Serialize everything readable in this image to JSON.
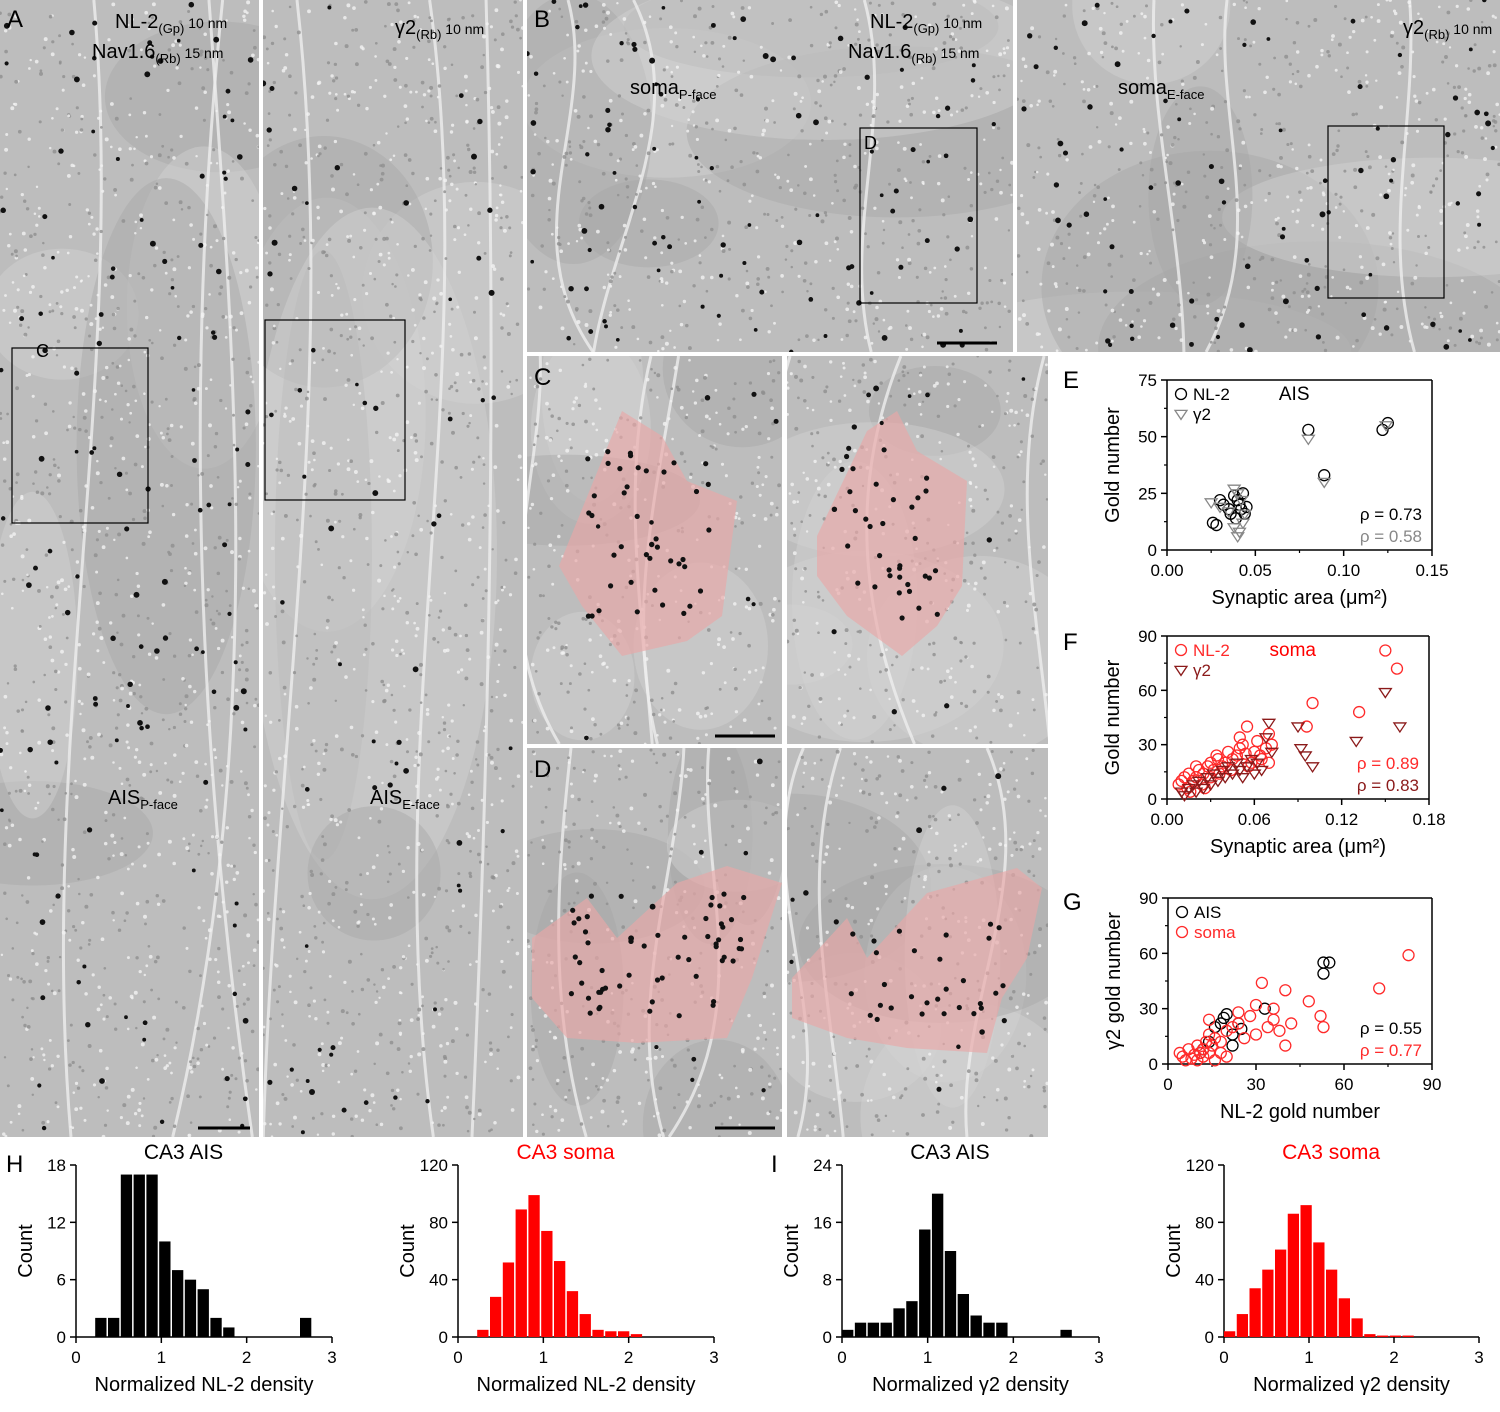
{
  "panels": {
    "A": {
      "letter": "A",
      "left_labels": {
        "l1": "NL-2",
        "l1sub": "(Gp)",
        "l1tail": " 10 nm",
        "l2": "Nav1.6",
        "l2sub": "(Rb)",
        "l2tail": " 15 nm",
        "region": "AIS",
        "face": "P-face",
        "box": "C"
      },
      "right_labels": {
        "l1": "γ2",
        "l1sub": "(Rb)",
        "l1tail": " 10 nm",
        "region": "AIS",
        "face": "E-face"
      }
    },
    "B": {
      "letter": "B",
      "left_labels": {
        "l1": "NL-2",
        "l1sub": "(Gp)",
        "l1tail": " 10 nm",
        "l2": "Nav1.6",
        "l2sub": "(Rb)",
        "l2tail": " 15 nm",
        "region": "soma",
        "face": "P-face",
        "box": "D"
      },
      "right_labels": {
        "l1": "γ2",
        "l1sub": "(Rb)",
        "l1tail": " 10 nm",
        "region": "soma",
        "face": "E-face"
      }
    },
    "C": {
      "letter": "C"
    },
    "D": {
      "letter": "D"
    }
  },
  "chart_data": [
    {
      "panel": "E",
      "type": "scatter",
      "title": "AIS",
      "xlabel": "Synaptic area (μm²)",
      "ylabel": "Gold number",
      "xlim": [
        0,
        0.15
      ],
      "ylim": [
        0,
        75
      ],
      "xticks": [
        "0.00",
        "0.05",
        "0.10",
        "0.15"
      ],
      "yticks": [
        "0",
        "25",
        "50",
        "75"
      ],
      "legend": "top-left",
      "series": [
        {
          "name": "NL-2",
          "marker": "circle",
          "color": "#000000",
          "x": [
            0.026,
            0.028,
            0.03,
            0.032,
            0.035,
            0.036,
            0.038,
            0.04,
            0.041,
            0.042,
            0.044,
            0.045,
            0.043,
            0.039,
            0.08,
            0.089,
            0.122,
            0.125
          ],
          "y": [
            12,
            11,
            22,
            20,
            18,
            16,
            24,
            22,
            20,
            18,
            16,
            19,
            25,
            14,
            53,
            33,
            53,
            56
          ]
        },
        {
          "name": "γ2",
          "marker": "triangle-down",
          "color": "#888888",
          "x": [
            0.025,
            0.03,
            0.035,
            0.038,
            0.04,
            0.042,
            0.044,
            0.038,
            0.04,
            0.043,
            0.041,
            0.08,
            0.089,
            0.124
          ],
          "y": [
            21,
            19,
            17,
            27,
            25,
            22,
            16,
            10,
            6,
            12,
            8,
            49,
            30,
            55
          ]
        }
      ],
      "annotations": [
        {
          "text": "ρ = 0.73",
          "color": "#000000"
        },
        {
          "text": "ρ = 0.58",
          "color": "#888888"
        }
      ]
    },
    {
      "panel": "F",
      "type": "scatter",
      "title": "soma",
      "xlabel": "Synaptic area (μm²)",
      "ylabel": "Gold number",
      "xlim": [
        0,
        0.18
      ],
      "ylim": [
        0,
        90
      ],
      "xticks": [
        "0.00",
        "0.06",
        "0.12",
        "0.18"
      ],
      "yticks": [
        "0",
        "30",
        "60",
        "90"
      ],
      "legend": "top-left",
      "series": [
        {
          "name": "NL-2",
          "marker": "circle",
          "color": "#ff2a2a",
          "x": [
            0.008,
            0.01,
            0.012,
            0.014,
            0.015,
            0.018,
            0.02,
            0.022,
            0.024,
            0.025,
            0.028,
            0.03,
            0.032,
            0.034,
            0.035,
            0.038,
            0.04,
            0.042,
            0.045,
            0.048,
            0.05,
            0.052,
            0.054,
            0.055,
            0.058,
            0.06,
            0.062,
            0.065,
            0.068,
            0.07,
            0.072,
            0.016,
            0.02,
            0.026,
            0.03,
            0.036,
            0.044,
            0.05,
            0.056,
            0.064,
            0.07,
            0.096,
            0.1,
            0.132,
            0.15,
            0.158
          ],
          "y": [
            8,
            10,
            12,
            6,
            14,
            10,
            12,
            16,
            8,
            14,
            18,
            20,
            16,
            24,
            22,
            18,
            20,
            26,
            22,
            24,
            28,
            30,
            25,
            40,
            20,
            26,
            32,
            22,
            28,
            36,
            30,
            4,
            18,
            6,
            12,
            14,
            16,
            34,
            18,
            24,
            20,
            40,
            53,
            48,
            82,
            72
          ]
        },
        {
          "name": "γ2",
          "marker": "triangle-down",
          "color": "#8b1a1a",
          "x": [
            0.01,
            0.012,
            0.015,
            0.018,
            0.02,
            0.022,
            0.025,
            0.028,
            0.03,
            0.032,
            0.035,
            0.038,
            0.04,
            0.042,
            0.045,
            0.048,
            0.05,
            0.052,
            0.055,
            0.058,
            0.06,
            0.062,
            0.065,
            0.068,
            0.07,
            0.072,
            0.09,
            0.092,
            0.095,
            0.1,
            0.13,
            0.15,
            0.16
          ],
          "y": [
            4,
            2,
            6,
            8,
            4,
            10,
            6,
            12,
            8,
            14,
            10,
            16,
            12,
            18,
            14,
            20,
            16,
            12,
            18,
            22,
            14,
            20,
            16,
            34,
            42,
            26,
            40,
            28,
            24,
            18,
            32,
            59,
            40
          ]
        }
      ],
      "annotations": [
        {
          "text": "ρ = 0.89",
          "color": "#ff2a2a"
        },
        {
          "text": "ρ = 0.83",
          "color": "#8b1a1a"
        }
      ]
    },
    {
      "panel": "G",
      "type": "scatter",
      "title": "",
      "xlabel": "NL-2 gold number",
      "ylabel": "γ2 gold number",
      "xlim": [
        0,
        90
      ],
      "ylim": [
        0,
        90
      ],
      "xticks": [
        "0",
        "30",
        "60",
        "90"
      ],
      "yticks": [
        "0",
        "30",
        "60",
        "90"
      ],
      "legend": "top-left",
      "series": [
        {
          "name": "AIS",
          "marker": "circle",
          "color": "#000000",
          "x": [
            11,
            12,
            14,
            16,
            18,
            19,
            20,
            22,
            22,
            24,
            25,
            33,
            53,
            55,
            53
          ],
          "y": [
            6,
            8,
            12,
            20,
            22,
            25,
            27,
            16,
            10,
            22,
            19,
            30,
            49,
            55,
            55
          ]
        },
        {
          "name": "soma",
          "marker": "circle",
          "color": "#ff2a2a",
          "x": [
            4,
            5,
            6,
            7,
            8,
            9,
            10,
            10,
            11,
            12,
            12,
            13,
            14,
            14,
            15,
            16,
            18,
            20,
            20,
            22,
            24,
            26,
            28,
            30,
            32,
            34,
            36,
            38,
            40,
            42,
            48,
            52,
            53,
            72,
            82,
            14,
            24,
            30,
            36,
            40,
            16,
            18
          ],
          "y": [
            6,
            4,
            2,
            8,
            3,
            5,
            10,
            2,
            6,
            8,
            4,
            12,
            6,
            16,
            10,
            14,
            12,
            18,
            4,
            20,
            22,
            14,
            26,
            32,
            44,
            20,
            24,
            18,
            40,
            22,
            34,
            26,
            20,
            41,
            59,
            24,
            28,
            16,
            30,
            10,
            2,
            6
          ]
        }
      ],
      "annotations": [
        {
          "text": "ρ = 0.55",
          "color": "#000000"
        },
        {
          "text": "ρ = 0.77",
          "color": "#ff2a2a"
        }
      ]
    },
    {
      "panel": "H",
      "type": "bar",
      "title": "CA3 AIS",
      "color": "#000000",
      "xlabel": "Normalized NL-2 density",
      "ylabel": "Count",
      "xlim": [
        0,
        3
      ],
      "ylim": [
        0,
        18
      ],
      "xticks": [
        "0",
        "1",
        "2",
        "3"
      ],
      "yticks": [
        "0",
        "6",
        "12",
        "18"
      ],
      "bin_width": 0.15,
      "bin_starts": [
        0.225,
        0.375,
        0.525,
        0.675,
        0.825,
        0.975,
        1.125,
        1.275,
        1.425,
        1.575,
        1.725,
        1.875,
        2.025,
        2.175,
        2.325,
        2.475,
        2.625
      ],
      "values": [
        2,
        2,
        17,
        17,
        17,
        10,
        7,
        6,
        5,
        2,
        1,
        0,
        0,
        0,
        0,
        0,
        2
      ]
    },
    {
      "panel": "H",
      "type": "bar",
      "title": "CA3 soma",
      "color": "#ff0000",
      "xlabel": "Normalized NL-2 density",
      "ylabel": "Count",
      "xlim": [
        0,
        3
      ],
      "ylim": [
        0,
        120
      ],
      "xticks": [
        "0",
        "1",
        "2",
        "3"
      ],
      "yticks": [
        "0",
        "40",
        "80",
        "120"
      ],
      "bin_width": 0.15,
      "bin_starts": [
        0.225,
        0.375,
        0.525,
        0.675,
        0.825,
        0.975,
        1.125,
        1.275,
        1.425,
        1.575,
        1.725,
        1.875,
        2.025
      ],
      "values": [
        5,
        28,
        52,
        89,
        99,
        74,
        53,
        32,
        16,
        5,
        4,
        4,
        2
      ]
    },
    {
      "panel": "I",
      "type": "bar",
      "title": "CA3 AIS",
      "color": "#000000",
      "xlabel": "Normalized γ2 density",
      "ylabel": "Count",
      "xlim": [
        0,
        3
      ],
      "ylim": [
        0,
        24
      ],
      "xticks": [
        "0",
        "1",
        "2",
        "3"
      ],
      "yticks": [
        "0",
        "8",
        "16",
        "24"
      ],
      "bin_width": 0.15,
      "bin_starts": [
        0,
        0.15,
        0.3,
        0.45,
        0.6,
        0.75,
        0.9,
        1.05,
        1.2,
        1.35,
        1.5,
        1.65,
        1.8,
        1.95,
        2.1,
        2.25,
        2.4,
        2.55
      ],
      "values": [
        1,
        2,
        2,
        2,
        4,
        5,
        15,
        20,
        12,
        6,
        3,
        2,
        2,
        0,
        0,
        0,
        0,
        1
      ]
    },
    {
      "panel": "I",
      "type": "bar",
      "title": "CA3 soma",
      "color": "#ff0000",
      "xlabel": "Normalized γ2 density",
      "ylabel": "Count",
      "xlim": [
        0,
        3
      ],
      "ylim": [
        0,
        120
      ],
      "xticks": [
        "0",
        "1",
        "2",
        "3"
      ],
      "yticks": [
        "0",
        "40",
        "80",
        "120"
      ],
      "bin_width": 0.15,
      "bin_starts": [
        0,
        0.15,
        0.3,
        0.45,
        0.6,
        0.75,
        0.9,
        1.05,
        1.2,
        1.35,
        1.5,
        1.65,
        1.8,
        1.95,
        2.1,
        2.25
      ],
      "values": [
        4,
        16,
        34,
        47,
        61,
        86,
        92,
        66,
        47,
        27,
        13,
        2,
        1,
        1,
        1,
        0
      ]
    }
  ]
}
